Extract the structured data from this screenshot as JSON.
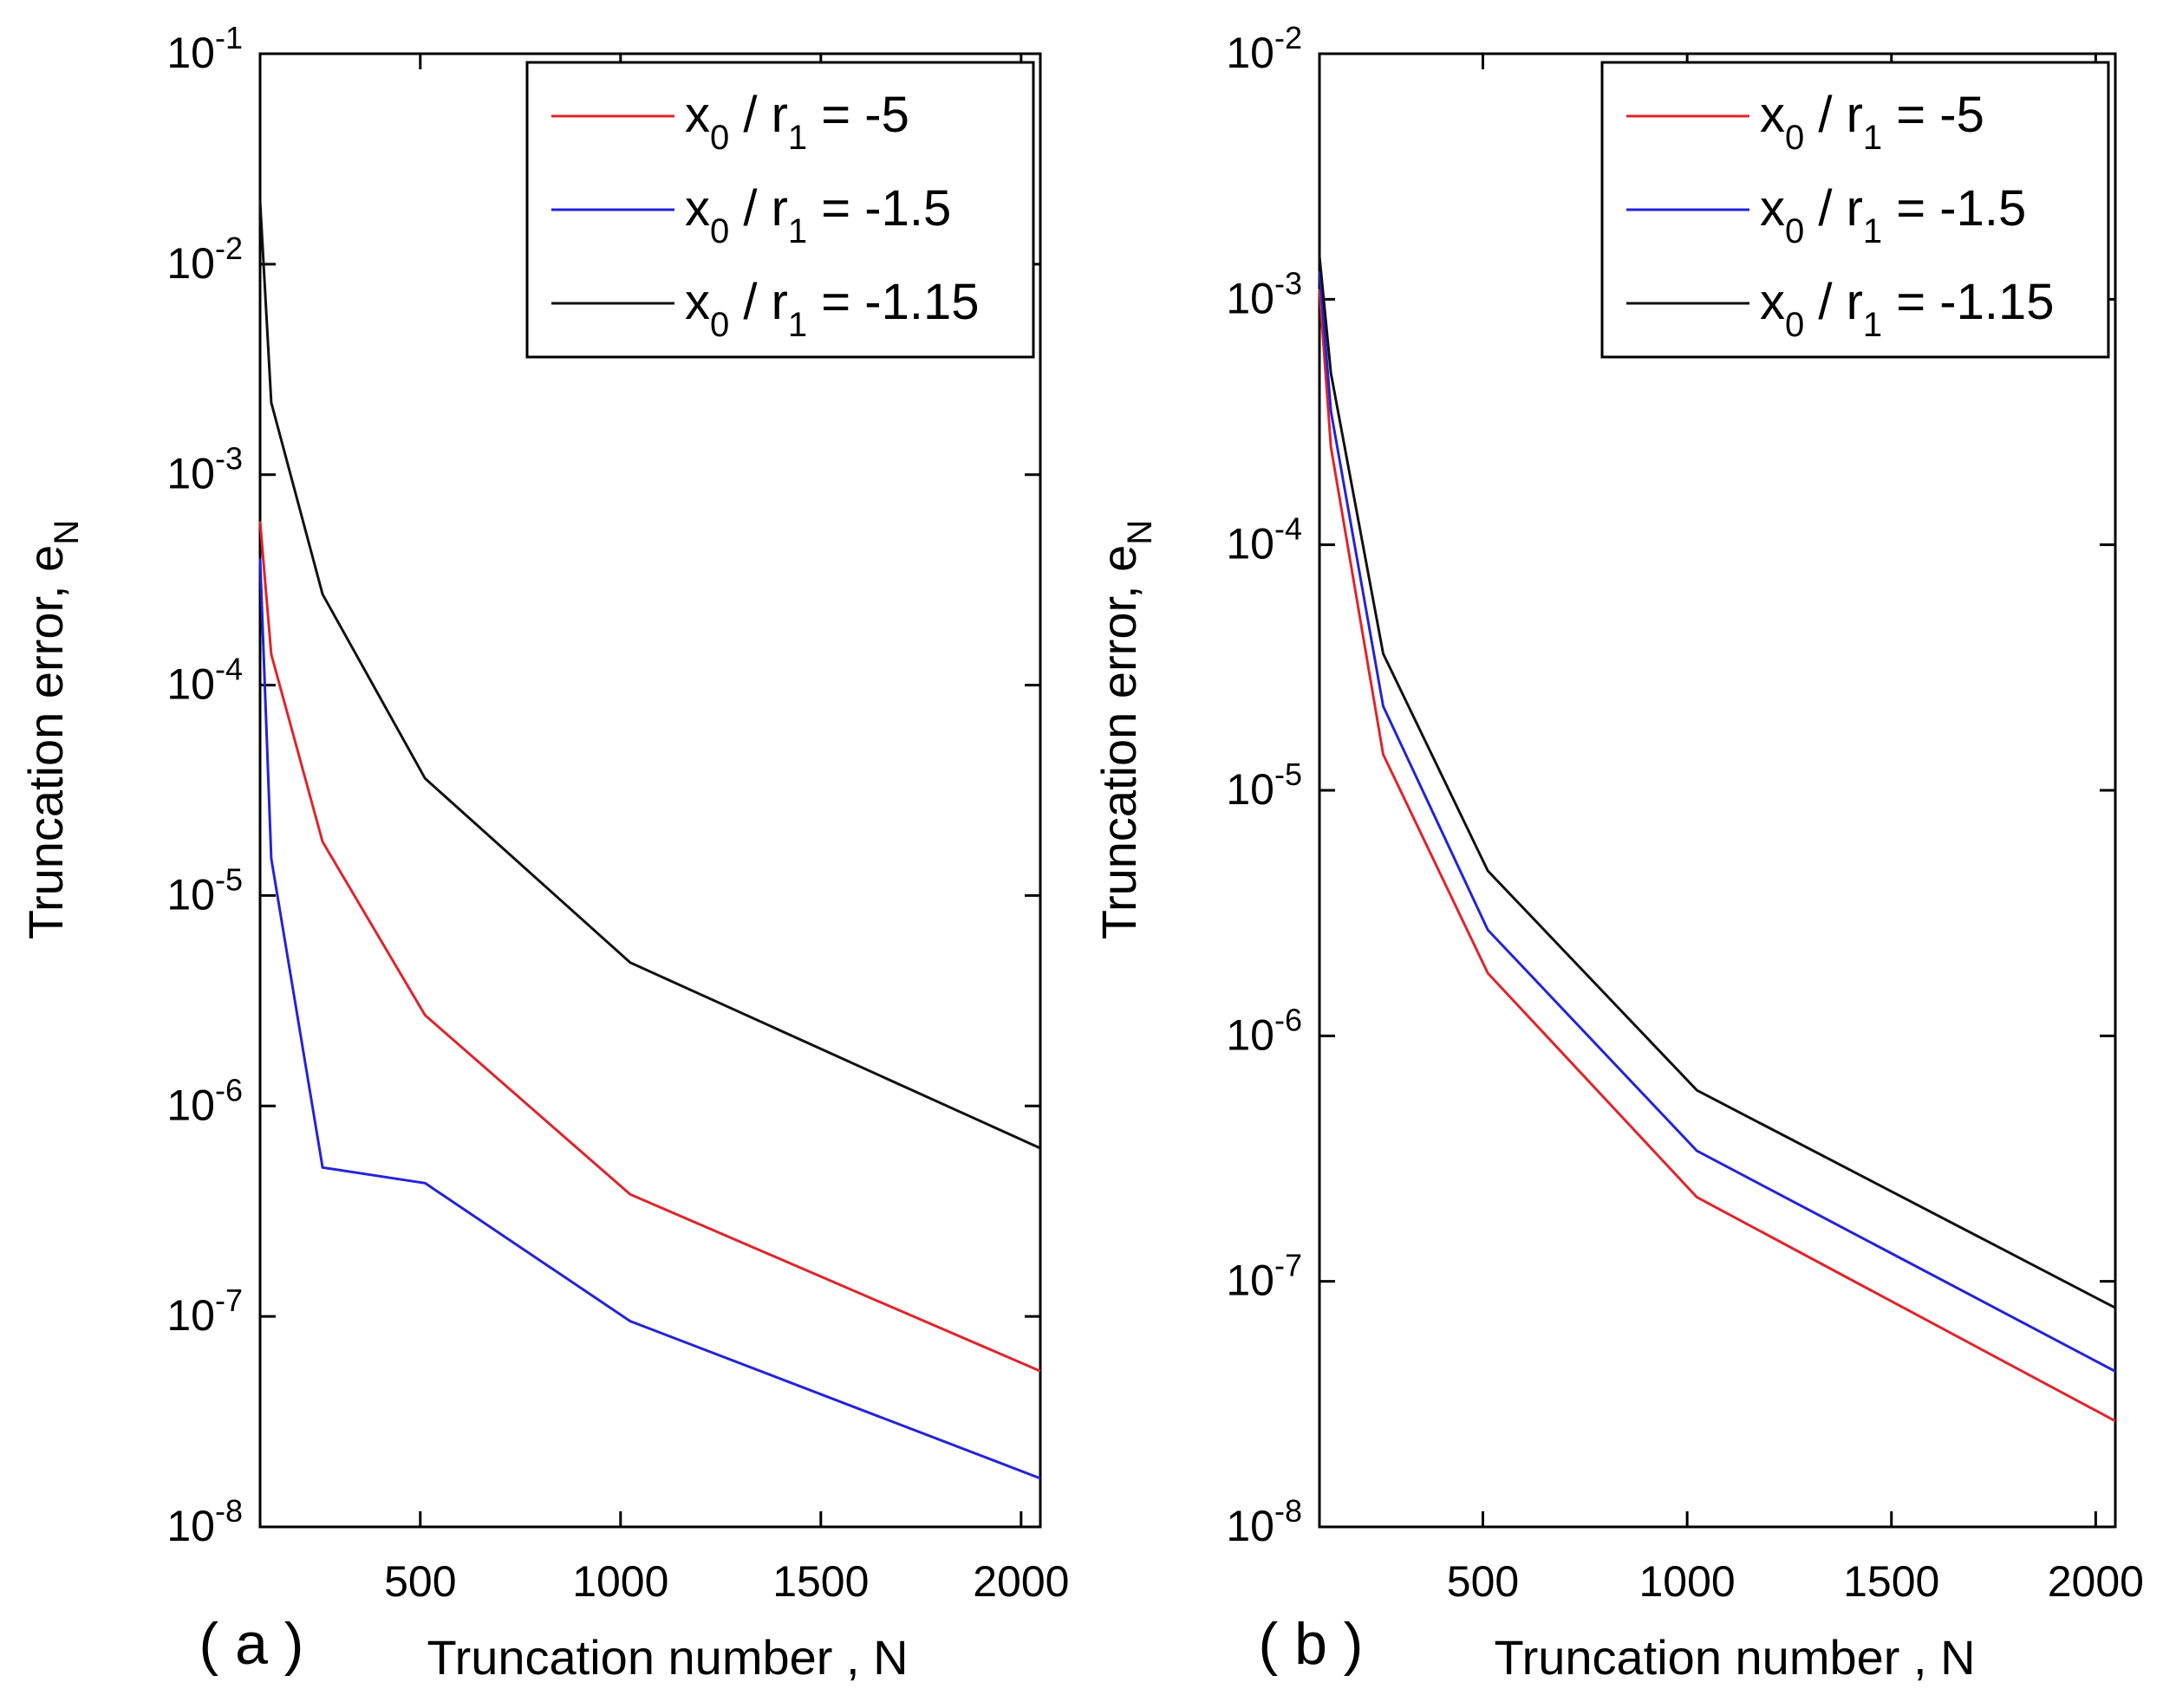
{
  "chart_data": [
    {
      "type": "line",
      "panel_label": "( a )",
      "title": "",
      "xlabel": "Truncation number , N",
      "ylabel": "Truncation error, e",
      "ylabel_sub": "N",
      "x_scale": "linear",
      "y_scale": "log",
      "xlim": [
        100,
        2048
      ],
      "ylim": [
        1e-08,
        0.1
      ],
      "xticks": [
        500,
        1000,
        1500,
        2000
      ],
      "ytick_exponents": [
        -8,
        -7,
        -6,
        -5,
        -4,
        -3,
        -2,
        -1
      ],
      "ytick_base": "10",
      "legend_position": "top-right",
      "series": [
        {
          "legend_main": "x",
          "legend_sub0": "0",
          "legend_mid": " / r",
          "legend_sub1": "1",
          "legend_value": " = -5",
          "color": "#e0242a",
          "x": [
            100,
            128,
            256,
            512,
            1024,
            2048
          ],
          "y": [
            0.0006,
            0.00014,
            1.8e-05,
            2.7e-06,
            3.8e-07,
            5.5e-08
          ]
        },
        {
          "legend_main": "x",
          "legend_sub0": "0",
          "legend_mid": " / r",
          "legend_sub1": "1",
          "legend_value": " = -1.5",
          "color": "#2323d8",
          "x": [
            100,
            128,
            256,
            512,
            1024,
            2048
          ],
          "y": [
            0.0004,
            1.5e-05,
            5.1e-07,
            4.3e-07,
            9.5e-08,
            1.7e-08
          ]
        },
        {
          "legend_main": "x",
          "legend_sub0": "0",
          "legend_mid": " / r",
          "legend_sub1": "1",
          "legend_value": " = -1.15",
          "color": "#111111",
          "x": [
            100,
            128,
            256,
            512,
            1024,
            2048
          ],
          "y": [
            0.02,
            0.0022,
            0.00027,
            3.6e-05,
            4.8e-06,
            6.3e-07
          ]
        }
      ]
    },
    {
      "type": "line",
      "panel_label": "( b )",
      "title": "",
      "xlabel": "Truncation number , N",
      "ylabel": "Truncation error, e",
      "ylabel_sub": "N",
      "x_scale": "linear",
      "y_scale": "log",
      "xlim": [
        100,
        2048
      ],
      "ylim": [
        1e-08,
        0.01
      ],
      "xticks": [
        500,
        1000,
        1500,
        2000
      ],
      "ytick_exponents": [
        -8,
        -7,
        -6,
        -5,
        -4,
        -3,
        -2
      ],
      "ytick_base": "10",
      "legend_position": "top-right",
      "series": [
        {
          "legend_main": "x",
          "legend_sub0": "0",
          "legend_mid": " / r",
          "legend_sub1": "1",
          "legend_value": " = -5",
          "color": "#e0242a",
          "x": [
            100,
            128,
            256,
            512,
            1024,
            2048
          ],
          "y": [
            0.0011,
            0.00025,
            1.4e-05,
            1.8e-06,
            2.2e-07,
            2.7e-08
          ]
        },
        {
          "legend_main": "x",
          "legend_sub0": "0",
          "legend_mid": " / r",
          "legend_sub1": "1",
          "legend_value": " = -1.5",
          "color": "#2323d8",
          "x": [
            100,
            128,
            256,
            512,
            1024,
            2048
          ],
          "y": [
            0.0013,
            0.00035,
            2.2e-05,
            2.7e-06,
            3.4e-07,
            4.3e-08
          ]
        },
        {
          "legend_main": "x",
          "legend_sub0": "0",
          "legend_mid": " / r",
          "legend_sub1": "1",
          "legend_value": " = -1.15",
          "color": "#111111",
          "x": [
            100,
            128,
            256,
            512,
            1024,
            2048
          ],
          "y": [
            0.0015,
            0.0005,
            3.6e-05,
            4.7e-06,
            6e-07,
            7.8e-08
          ]
        }
      ]
    }
  ]
}
